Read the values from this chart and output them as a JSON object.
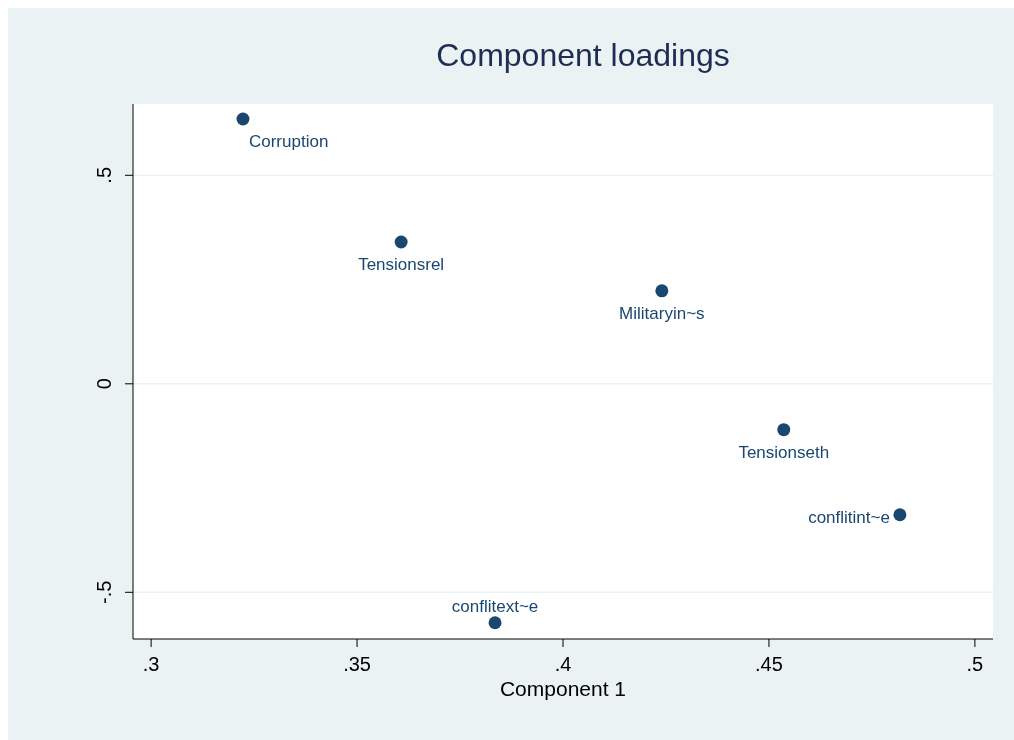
{
  "chart_data": {
    "type": "scatter",
    "title": "Component loadings",
    "xlabel": "Component 1",
    "x": [
      0.3223,
      0.3607,
      0.424,
      0.4536,
      0.4818,
      0.3835
    ],
    "values": [
      0.635,
      0.34,
      0.223,
      -0.11,
      -0.314,
      -0.573
    ],
    "color": "#1a476f",
    "marker": "circle",
    "xlim": [
      0.2956,
      0.5044
    ],
    "xticks": [
      {
        "value": 0.3,
        "label": ".3"
      },
      {
        "value": 0.35,
        "label": ".35"
      },
      {
        "value": 0.4,
        "label": ".4"
      },
      {
        "value": 0.45,
        "label": ".45"
      },
      {
        "value": 0.5,
        "label": ".5"
      }
    ],
    "ylim": [
      -0.612,
      0.671
    ],
    "yticks": [
      {
        "value": -0.5,
        "label": "-.5"
      },
      0,
      {
        "value": 0.5,
        "label": ".5"
      }
    ],
    "grid": "y",
    "annotations": [
      {
        "text": "Corruption",
        "x": 0.3223,
        "y": 0.635
      },
      {
        "text": "Tensionsrel",
        "x": 0.3607,
        "y": 0.34
      },
      {
        "text": "Militaryin~s",
        "x": 0.424,
        "y": 0.223
      },
      {
        "text": "Tensionseth",
        "x": 0.4536,
        "y": -0.11
      },
      {
        "text": "conflitint~e",
        "x": 0.4818,
        "y": -0.314
      },
      {
        "text": "conflitext~e",
        "x": 0.3835,
        "y": -0.573
      }
    ]
  }
}
